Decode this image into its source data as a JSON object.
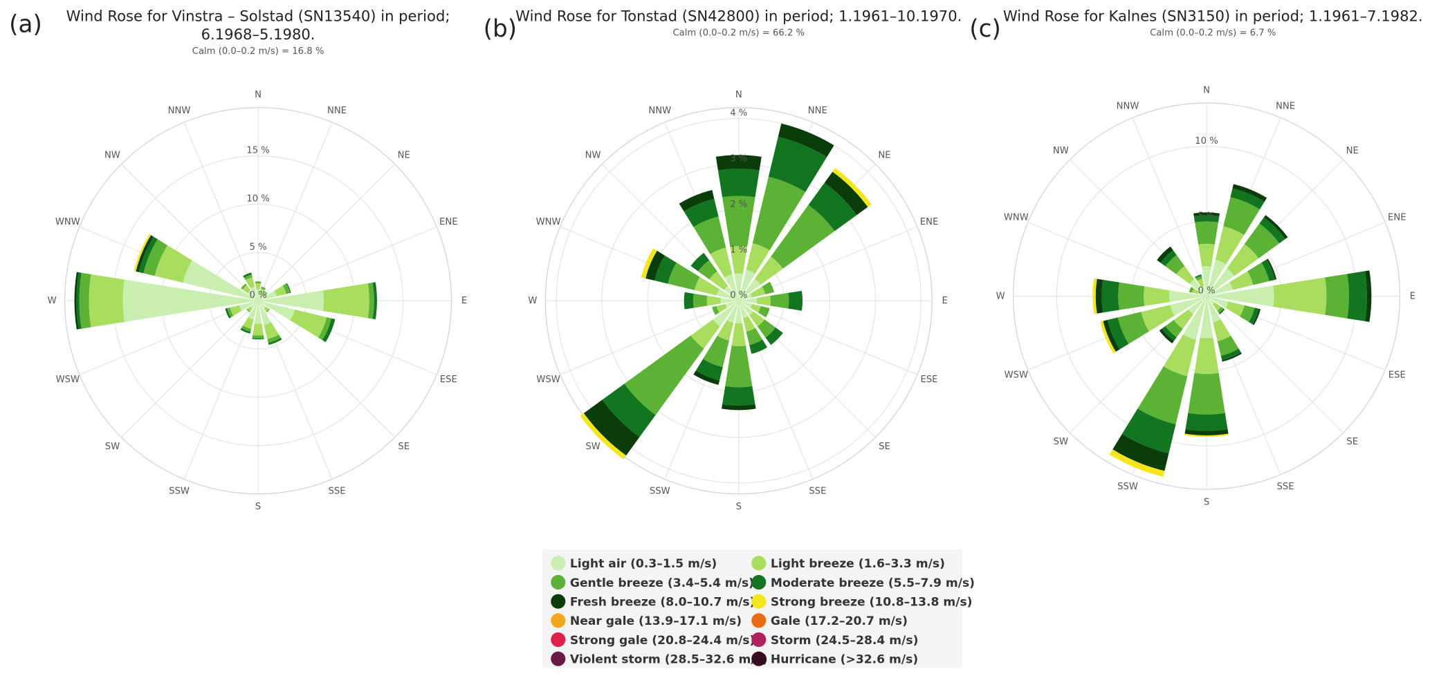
{
  "chart_data": [
    {
      "type": "windrose",
      "panel_label": "(a)",
      "title": "Wind Rose for Vinstra – Solstad (SN13540) in period; 6.1968–5.1980.",
      "subtitle": "Calm (0.0–0.2 m/s) = 16.8 %",
      "categories": [
        "N",
        "NNE",
        "NE",
        "ENE",
        "E",
        "ESE",
        "SE",
        "SSE",
        "S",
        "SSW",
        "SW",
        "WSW",
        "W",
        "WNW",
        "NW",
        "NNW"
      ],
      "ylim": [
        0,
        20
      ],
      "yticks": [
        {
          "value": 0,
          "label": "0 %"
        },
        {
          "value": 5,
          "label": "5 %"
        },
        {
          "value": 10,
          "label": "10 %"
        },
        {
          "value": 15,
          "label": "15 %"
        }
      ],
      "series": [
        {
          "name": "Light air (0.3–1.5 m/s)",
          "color": "#c9efb0",
          "values": [
            1.2,
            0.9,
            0.8,
            2,
            6.8,
            3.9,
            1,
            2.6,
            2.4,
            2,
            1,
            2,
            14,
            8,
            1.3,
            1.5
          ]
        },
        {
          "name": "Light breeze (1.6–3.3 m/s)",
          "color": "#a8dd5e",
          "values": [
            0.6,
            0.4,
            0.3,
            1,
            4.7,
            3.4,
            0.4,
            1.5,
            1.2,
            1,
            0.4,
            1,
            3.5,
            3,
            0.7,
            1
          ]
        },
        {
          "name": "Gentle breeze (3.4–5.4 m/s)",
          "color": "#5cb234",
          "values": [
            0.2,
            0.2,
            0.1,
            0.4,
            0.5,
            0.5,
            0.1,
            0.4,
            0.3,
            0.3,
            0.1,
            0.3,
            1,
            1.2,
            0.2,
            0.3
          ]
        },
        {
          "name": "Moderate breeze (5.5–7.9 m/s)",
          "color": "#12751f",
          "values": [
            0,
            0,
            0,
            0.1,
            0.3,
            0.4,
            0,
            0.2,
            0.1,
            0.2,
            0,
            0.2,
            0.3,
            0.5,
            0,
            0.2
          ]
        },
        {
          "name": "Fresh breeze (8.0–10.7 m/s)",
          "color": "#0b3d0b",
          "values": [
            0,
            0,
            0,
            0,
            0,
            0,
            0,
            0,
            0,
            0,
            0,
            0,
            0.2,
            0.3,
            0,
            0
          ]
        },
        {
          "name": "Strong breeze (10.8–13.8 m/s)",
          "color": "#f4e51c",
          "values": [
            0,
            0,
            0,
            0,
            0,
            0,
            0,
            0,
            0,
            0,
            0,
            0,
            0,
            0.2,
            0,
            0
          ]
        }
      ]
    },
    {
      "type": "windrose",
      "panel_label": "(b)",
      "title": "Wind Rose for Tonstad (SN42800) in period; 1.1961–10.1970.",
      "subtitle": "Calm (0.0–0.2 m/s) = 66.2 %",
      "categories": [
        "N",
        "NNE",
        "NE",
        "ENE",
        "E",
        "ESE",
        "SE",
        "SSE",
        "S",
        "SSW",
        "SW",
        "WSW",
        "W",
        "WNW",
        "NW",
        "NNW"
      ],
      "ylim": [
        0,
        4.24
      ],
      "yticks": [
        {
          "value": 0,
          "label": "0 %"
        },
        {
          "value": 1,
          "label": "1 %"
        },
        {
          "value": 2,
          "label": "2 %"
        },
        {
          "value": 3,
          "label": "3 %"
        },
        {
          "value": 4,
          "label": "4 %"
        }
      ],
      "series": [
        {
          "name": "Light air (0.3–1.5 m/s)",
          "color": "#c9efb0",
          "values": [
            0.6,
            0.7,
            0.6,
            0.3,
            0.4,
            0.3,
            0.4,
            0.4,
            0.5,
            0.5,
            0.7,
            0.3,
            0.4,
            0.5,
            0.4,
            0.6
          ]
        },
        {
          "name": "Light breeze (1.6–3.3 m/s)",
          "color": "#a8dd5e",
          "values": [
            0.6,
            0.6,
            0.6,
            0.3,
            0.3,
            0.2,
            0.3,
            0.3,
            0.5,
            0.4,
            0.6,
            0.2,
            0.3,
            0.5,
            0.4,
            0.6
          ]
        },
        {
          "name": "Gentle breeze (3.4–5.4 m/s)",
          "color": "#5cb234",
          "values": [
            1.1,
            1.5,
            1.4,
            0.2,
            0.4,
            0.2,
            0.3,
            0.3,
            0.9,
            0.6,
            1.8,
            0.1,
            0.3,
            0.6,
            0.3,
            0.7
          ]
        },
        {
          "name": "Moderate breeze (5.5–7.9 m/s)",
          "color": "#12751f",
          "values": [
            0.6,
            0.9,
            0.6,
            0,
            0.3,
            0,
            0.2,
            0.2,
            0.4,
            0.3,
            0.6,
            0,
            0.2,
            0.3,
            0.2,
            0.4
          ]
        },
        {
          "name": "Fresh breeze (8.0–10.7 m/s)",
          "color": "#0b3d0b",
          "values": [
            0.3,
            0.3,
            0.3,
            0,
            0,
            0,
            0,
            0,
            0.1,
            0.1,
            0.5,
            0,
            0,
            0.2,
            0,
            0.2
          ]
        },
        {
          "name": "Strong breeze (10.8–13.8 m/s)",
          "color": "#f4e51c",
          "values": [
            0,
            0,
            0.1,
            0,
            0,
            0,
            0,
            0,
            0,
            0,
            0.1,
            0,
            0,
            0.1,
            0,
            0
          ]
        }
      ]
    },
    {
      "type": "windrose",
      "panel_label": "(c)",
      "title": "Wind Rose for Kalnes (SN3150) in period; 1.1961–7.1982.",
      "subtitle": "Calm (0.0–0.2 m/s) = 6.7 %",
      "categories": [
        "N",
        "NNE",
        "NE",
        "ENE",
        "E",
        "ESE",
        "SE",
        "SSE",
        "S",
        "SSW",
        "SW",
        "WSW",
        "W",
        "WNW",
        "NW",
        "NNW"
      ],
      "ylim": [
        0,
        12.9
      ],
      "yticks": [
        {
          "value": 0,
          "label": "0 %"
        },
        {
          "value": 5,
          "label": "5 %"
        },
        {
          "value": 10,
          "label": "10 %"
        }
      ],
      "series": [
        {
          "name": "Light air (0.3–1.5 m/s)",
          "color": "#c9efb0",
          "values": [
            2,
            2.5,
            2.3,
            1.8,
            4.5,
            1.5,
            0.7,
            1.8,
            2.8,
            3,
            1.5,
            2.5,
            2.5,
            0.6,
            1.4,
            0.7
          ]
        },
        {
          "name": "Light breeze (1.6–3.3 m/s)",
          "color": "#a8dd5e",
          "values": [
            1.5,
            2.3,
            2,
            1.4,
            3.5,
            1.1,
            0.5,
            1.3,
            2.4,
            2.5,
            1.2,
            2,
            1.7,
            0.4,
            1.1,
            0.5
          ]
        },
        {
          "name": "Gentle breeze (3.4–5.4 m/s)",
          "color": "#5cb234",
          "values": [
            1.5,
            2,
            1.7,
            1.1,
            1.5,
            0.7,
            0.2,
            1,
            2.7,
            3.3,
            0.7,
            1.6,
            1.7,
            0.2,
            0.9,
            0.2
          ]
        },
        {
          "name": "Moderate breeze (5.5–7.9 m/s)",
          "color": "#12751f",
          "values": [
            0.4,
            0.6,
            0.5,
            0.4,
            1.2,
            0.3,
            0.1,
            0.3,
            1.1,
            2,
            0.3,
            0.7,
            1.1,
            0,
            0.4,
            0.1
          ]
        },
        {
          "name": "Fresh breeze (8.0–10.7 m/s)",
          "color": "#0b3d0b",
          "values": [
            0.2,
            0.3,
            0.2,
            0.1,
            0.3,
            0.1,
            0,
            0.1,
            0.3,
            1.2,
            0.2,
            0.3,
            0.4,
            0,
            0.3,
            0
          ]
        },
        {
          "name": "Strong breeze (10.8–13.8 m/s)",
          "color": "#f4e51c",
          "values": [
            0,
            0,
            0,
            0,
            0,
            0,
            0,
            0,
            0.1,
            0.4,
            0,
            0.2,
            0.2,
            0,
            0,
            0
          ]
        }
      ]
    }
  ],
  "legend": [
    {
      "name": "Light air (0.3–1.5 m/s)",
      "color": "#c9efb0"
    },
    {
      "name": "Light breeze (1.6–3.3 m/s)",
      "color": "#a8dd5e"
    },
    {
      "name": "Gentle breeze (3.4–5.4 m/s)",
      "color": "#5cb234"
    },
    {
      "name": "Moderate breeze (5.5–7.9 m/s)",
      "color": "#12751f"
    },
    {
      "name": "Fresh breeze (8.0–10.7 m/s)",
      "color": "#0b3d0b"
    },
    {
      "name": "Strong breeze (10.8–13.8 m/s)",
      "color": "#f4e51c"
    },
    {
      "name": "Near gale (13.9–17.1 m/s)",
      "color": "#f2a81a"
    },
    {
      "name": "Gale (17.2–20.7 m/s)",
      "color": "#ec6a12"
    },
    {
      "name": "Strong gale (20.8–24.4 m/s)",
      "color": "#e0204a"
    },
    {
      "name": "Storm (24.5–28.4 m/s)",
      "color": "#b4205e"
    },
    {
      "name": "Violent storm (28.5–32.6 m/s)",
      "color": "#6a1a44"
    },
    {
      "name": "Hurricane (>32.6 m/s)",
      "color": "#3a0a1e"
    }
  ]
}
